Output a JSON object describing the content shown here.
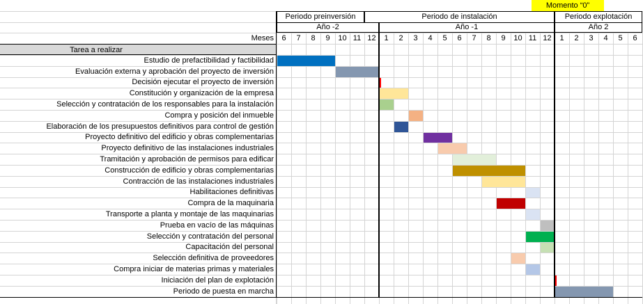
{
  "momento_label": "Momento “0”",
  "periods": [
    {
      "label": "Periodo  preinversión",
      "from": 0,
      "to": 6
    },
    {
      "label": "Periodo de instalación",
      "from": 6,
      "to": 19
    },
    {
      "label": "Periodo explotación",
      "from": 19,
      "to": 25
    }
  ],
  "years": [
    {
      "label": "Año -2",
      "from": 0,
      "to": 7
    },
    {
      "label": "Año -1",
      "from": 7,
      "to": 19
    },
    {
      "label": "Año 2",
      "from": 19,
      "to": 25
    }
  ],
  "months_label": "Meses",
  "months": [
    "6",
    "7",
    "8",
    "9",
    "10",
    "11",
    "12",
    "1",
    "2",
    "3",
    "4",
    "5",
    "6",
    "7",
    "8",
    "9",
    "10",
    "11",
    "12",
    "1",
    "2",
    "3",
    "4",
    "5",
    "6"
  ],
  "task_header": "Tarea a realizar",
  "colors": {
    "grid": "#d4d4d4",
    "header_bg": "#d9d9d9",
    "momento_bg": "#ffff00"
  },
  "tasks": [
    {
      "name": "Estudio de prefactibilidad y factibilidad",
      "start": 0,
      "span": 4,
      "color": "#0070c0"
    },
    {
      "name": "Evaluación externa y aprobación del proyecto de inversión",
      "start": 4,
      "span": 3,
      "color": "#8497b0"
    },
    {
      "name": "Decisión ejecutar el proyecto de inversión",
      "start": 7,
      "span": 0.12,
      "color": "#ff0000"
    },
    {
      "name": "Constitución y organización de la empresa",
      "start": 7,
      "span": 2,
      "color": "#ffe699"
    },
    {
      "name": "Selección y contratación de los responsables para la instalación",
      "start": 7,
      "span": 1,
      "color": "#a9d08e"
    },
    {
      "name": "Compra y posición del inmueble",
      "start": 9,
      "span": 1,
      "color": "#f4b183"
    },
    {
      "name": "Elaboración de los presupuestos definitivos para  control de gestión",
      "start": 8,
      "span": 1,
      "color": "#2f5597"
    },
    {
      "name": "Proyecto definitivo del edificio y obras complementarias",
      "start": 10,
      "span": 2,
      "color": "#7030a0"
    },
    {
      "name": "Proyecto definitivo de las instalaciones industriales",
      "start": 11,
      "span": 2,
      "color": "#f8cbad"
    },
    {
      "name": "Tramitación y aprobación de permisos para edificar",
      "start": 12,
      "span": 3,
      "color": "#e2efda"
    },
    {
      "name": "Construcción de edificio y obras complementarias",
      "start": 12,
      "span": 5,
      "color": "#bf9000"
    },
    {
      "name": "Contracción de las instalaciones industriales",
      "start": 14,
      "span": 3,
      "color": "#ffe699"
    },
    {
      "name": "Habilitaciones definitivas",
      "start": 17,
      "span": 1,
      "color": "#dae3f3"
    },
    {
      "name": "Compra de la maquinaria",
      "start": 15,
      "span": 2,
      "color": "#c00000"
    },
    {
      "name": "Transporte a planta y montaje de las maquinarias",
      "start": 17,
      "span": 1,
      "color": "#dae3f3"
    },
    {
      "name": "Prueba en vacío de las máquinas",
      "start": 18,
      "span": 1,
      "color": "#bfbfbf"
    },
    {
      "name": "Selección y contratación del personal",
      "start": 17,
      "span": 2,
      "color": "#00b050"
    },
    {
      "name": "Capacitación del personal",
      "start": 18,
      "span": 1,
      "color": "#c6e0b4"
    },
    {
      "name": "Selección definitiva de proveedores",
      "start": 16,
      "span": 1,
      "color": "#f8cbad"
    },
    {
      "name": "Compra iniciar de materias primas y materiales",
      "start": 17,
      "span": 1,
      "color": "#b4c7e7"
    },
    {
      "name": "Iniciación del plan de explotación",
      "start": 19,
      "span": 0.12,
      "color": "#ff0000"
    },
    {
      "name": "Periodo de puesta en marcha",
      "start": 19,
      "span": 4,
      "color": "#8497b0"
    }
  ]
}
